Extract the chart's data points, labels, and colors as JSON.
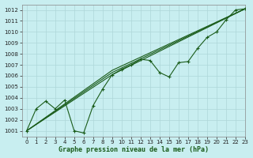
{
  "title": "Graphe pression niveau de la mer (hPa)",
  "background_color": "#c8eef0",
  "grid_color": "#aed6d8",
  "line_color": "#1a5c1a",
  "xlim": [
    -0.5,
    23
  ],
  "ylim": [
    1000.5,
    1012.5
  ],
  "xticks": [
    0,
    1,
    2,
    3,
    4,
    5,
    6,
    7,
    8,
    9,
    10,
    11,
    12,
    13,
    14,
    15,
    16,
    17,
    18,
    19,
    20,
    21,
    22,
    23
  ],
  "yticks": [
    1001,
    1002,
    1003,
    1004,
    1005,
    1006,
    1007,
    1008,
    1009,
    1010,
    1011,
    1012
  ],
  "series": [
    {
      "x": [
        0,
        1,
        2,
        3,
        4,
        5,
        6,
        7,
        8,
        9,
        10,
        11,
        12,
        13,
        14,
        15,
        16,
        17,
        18,
        19,
        20,
        21,
        22,
        23
      ],
      "y": [
        1001.0,
        1003.0,
        1003.7,
        1003.0,
        1003.8,
        1001.0,
        1000.8,
        1003.3,
        1004.8,
        1006.1,
        1006.6,
        1007.0,
        1007.5,
        1007.4,
        1006.3,
        1005.9,
        1007.2,
        1007.3,
        1008.5,
        1009.5,
        1010.0,
        1011.1,
        1012.0,
        1012.1
      ],
      "marker": true
    },
    {
      "x": [
        0,
        9,
        23
      ],
      "y": [
        1001.0,
        1006.3,
        1012.1
      ],
      "marker": false
    },
    {
      "x": [
        0,
        9,
        23
      ],
      "y": [
        1001.0,
        1006.5,
        1012.1
      ],
      "marker": false
    },
    {
      "x": [
        0,
        9,
        23
      ],
      "y": [
        1001.0,
        1006.1,
        1012.1
      ],
      "marker": false
    }
  ]
}
